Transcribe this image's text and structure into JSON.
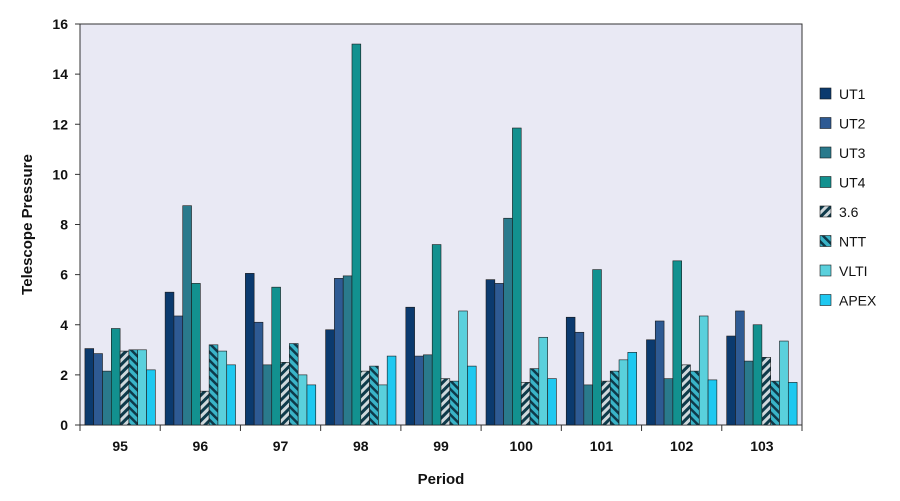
{
  "chart_data": {
    "type": "bar",
    "xlabel": "Period",
    "ylabel": "Telescope Pressure",
    "ylim": [
      0,
      16
    ],
    "yticks": [
      0,
      2,
      4,
      6,
      8,
      10,
      12,
      14,
      16
    ],
    "grid": false,
    "legend_position": "right",
    "plot_background": "#e9e9f4",
    "categories": [
      "95",
      "96",
      "97",
      "98",
      "99",
      "100",
      "101",
      "102",
      "103"
    ],
    "series": [
      {
        "name": "UT1",
        "color": "#0b3a6e",
        "pattern": "solid",
        "values": [
          3.05,
          5.3,
          6.05,
          3.8,
          4.7,
          5.8,
          4.3,
          3.4,
          3.55
        ]
      },
      {
        "name": "UT2",
        "color": "#2e5a93",
        "pattern": "solid",
        "values": [
          2.85,
          4.35,
          4.1,
          5.85,
          2.75,
          5.65,
          3.7,
          4.15,
          4.55
        ]
      },
      {
        "name": "UT3",
        "color": "#2a7a8c",
        "pattern": "solid",
        "values": [
          2.15,
          8.75,
          2.4,
          5.95,
          2.8,
          8.25,
          1.6,
          1.85,
          2.55
        ]
      },
      {
        "name": "UT4",
        "color": "#12918f",
        "pattern": "solid",
        "values": [
          3.85,
          5.65,
          5.5,
          15.2,
          7.2,
          11.85,
          6.2,
          6.55,
          4.0
        ]
      },
      {
        "name": "3.6",
        "color": "#0e3a4a",
        "pattern": "hatch-dark",
        "values": [
          2.95,
          1.35,
          2.5,
          2.15,
          1.85,
          1.7,
          1.75,
          2.4,
          2.7
        ]
      },
      {
        "name": "NTT",
        "color": "#3ab4c8",
        "pattern": "hatch-light",
        "values": [
          3.0,
          3.2,
          3.25,
          2.35,
          1.75,
          2.25,
          2.15,
          2.15,
          1.75
        ]
      },
      {
        "name": "VLTI",
        "color": "#5ad0dc",
        "pattern": "solid",
        "values": [
          3.0,
          2.95,
          2.0,
          1.6,
          4.55,
          3.5,
          2.6,
          4.35,
          3.35
        ]
      },
      {
        "name": "APEX",
        "color": "#1ec8f0",
        "pattern": "solid",
        "values": [
          2.2,
          2.4,
          1.6,
          2.75,
          2.35,
          1.85,
          2.9,
          1.8,
          1.7
        ]
      }
    ]
  }
}
